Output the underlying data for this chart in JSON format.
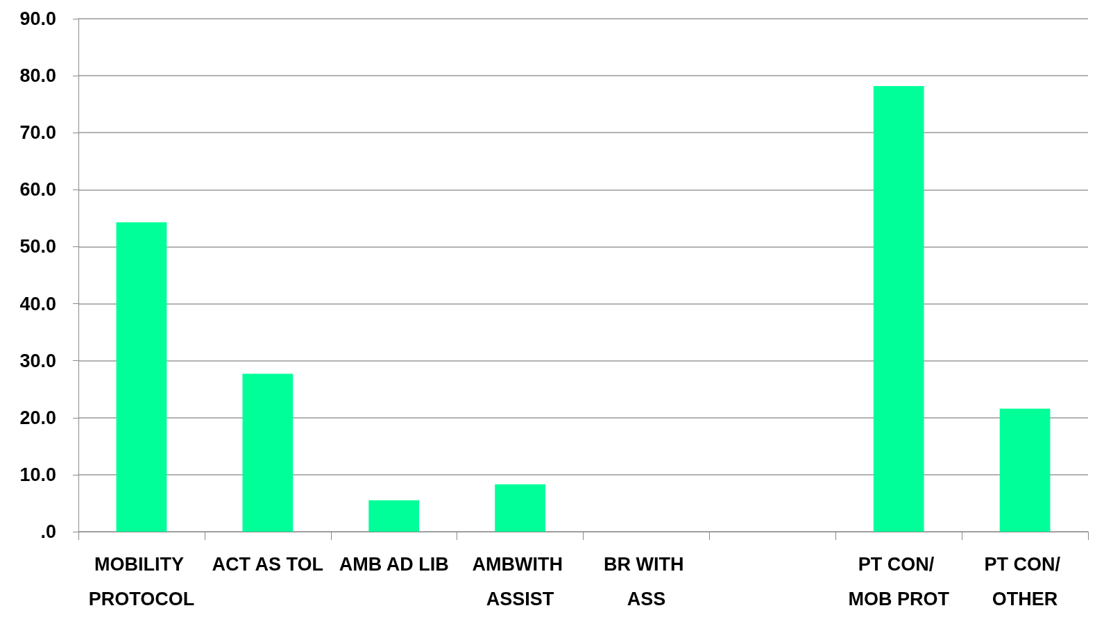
{
  "chart_data": {
    "type": "bar",
    "categories": [
      "MOBILITY PROTOCOL",
      "ACT AS TOL",
      "AMB AD LIB",
      "AMBWITH ASSIST",
      "BR WITH ASS",
      null,
      "PT CON/ MOB PROT",
      "PT CON/ OTHER"
    ],
    "values": [
      54.3,
      27.7,
      5.5,
      8.3,
      null,
      null,
      78.2,
      21.6
    ],
    "color": "#00ff99",
    "ylim": [
      0,
      90
    ],
    "yticks": [
      {
        "value": 0,
        "label": ".0"
      },
      {
        "value": 10,
        "label": "10.0"
      },
      {
        "value": 20,
        "label": "20.0"
      },
      {
        "value": 30,
        "label": "30.0"
      },
      {
        "value": 40,
        "label": "40.0"
      },
      {
        "value": 50,
        "label": "50.0"
      },
      {
        "value": 60,
        "label": "60.0"
      },
      {
        "value": 70,
        "label": "70.0"
      },
      {
        "value": 80,
        "label": "80.0"
      },
      {
        "value": 90,
        "label": "90.0"
      }
    ],
    "grid": "y"
  }
}
